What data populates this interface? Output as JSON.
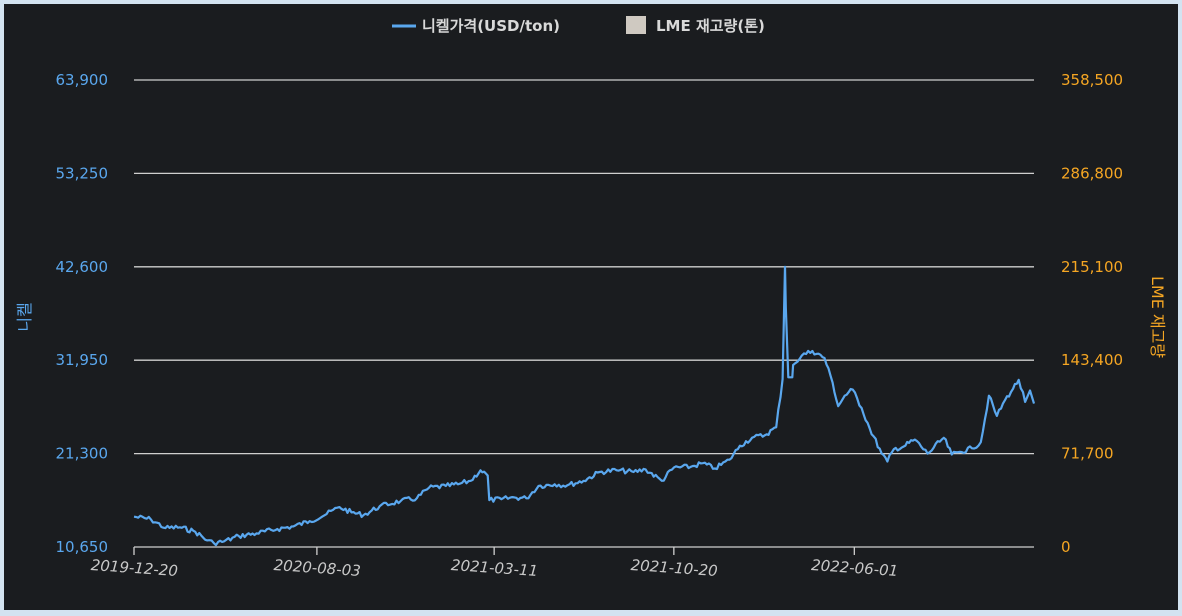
{
  "chart_data": {
    "type": "line",
    "title": "",
    "legend": [
      {
        "label": "니켈가격(USD/ton)",
        "color": "#5aa7ee",
        "kind": "line"
      },
      {
        "label": "LME 재고량(톤)",
        "color": "#cfc9c1",
        "kind": "box"
      }
    ],
    "legend_position": "top-center",
    "ylabel_left": "니켈",
    "ylabel_right": "LME 재고량",
    "y_left_ticks": [
      "63,900",
      "53,250",
      "42,600",
      "31,950",
      "21,300",
      "10,650"
    ],
    "y_left_range": [
      10650,
      63900
    ],
    "y_right_ticks": [
      "358,500",
      "286,800",
      "215,100",
      "143,400",
      "71,700",
      "0"
    ],
    "y_right_range": [
      0,
      358500
    ],
    "x_ticks": [
      "2019-12-20",
      "2020-08-03",
      "2021-03-11",
      "2021-10-20",
      "2022-06-01"
    ],
    "x_range": [
      "2019-12-20",
      "2023-01-10"
    ],
    "grid": true,
    "series": [
      {
        "name": "니켈가격(USD/ton)",
        "color": "#5aa7ee",
        "points": [
          [
            "2019-12-20",
            14100
          ],
          [
            "2020-01-10",
            13800
          ],
          [
            "2020-01-28",
            12800
          ],
          [
            "2020-02-15",
            12900
          ],
          [
            "2020-03-05",
            12400
          ],
          [
            "2020-03-20",
            11400
          ],
          [
            "2020-03-28",
            11100
          ],
          [
            "2020-04-10",
            11300
          ],
          [
            "2020-04-28",
            11900
          ],
          [
            "2020-05-20",
            12200
          ],
          [
            "2020-06-15",
            12700
          ],
          [
            "2020-07-05",
            13000
          ],
          [
            "2020-07-25",
            13600
          ],
          [
            "2020-08-15",
            14400
          ],
          [
            "2020-08-31",
            15200
          ],
          [
            "2020-09-15",
            14600
          ],
          [
            "2020-09-30",
            14300
          ],
          [
            "2020-10-20",
            15300
          ],
          [
            "2020-11-15",
            15900
          ],
          [
            "2020-12-05",
            16200
          ],
          [
            "2020-12-20",
            17400
          ],
          [
            "2021-01-10",
            17600
          ],
          [
            "2021-01-25",
            17800
          ],
          [
            "2021-02-10",
            18200
          ],
          [
            "2021-02-22",
            19400
          ],
          [
            "2021-03-03",
            18800
          ],
          [
            "2021-03-05",
            16000
          ],
          [
            "2021-03-20",
            16100
          ],
          [
            "2021-04-05",
            16300
          ],
          [
            "2021-04-20",
            16200
          ],
          [
            "2021-05-05",
            17600
          ],
          [
            "2021-05-25",
            17800
          ],
          [
            "2021-06-10",
            17700
          ],
          [
            "2021-06-30",
            18200
          ],
          [
            "2021-07-20",
            19200
          ],
          [
            "2021-08-10",
            19400
          ],
          [
            "2021-08-31",
            19200
          ],
          [
            "2021-09-15",
            19500
          ],
          [
            "2021-10-05",
            18200
          ],
          [
            "2021-10-20",
            19700
          ],
          [
            "2021-11-10",
            19800
          ],
          [
            "2021-11-25",
            20200
          ],
          [
            "2021-12-10",
            19600
          ],
          [
            "2021-12-28",
            20600
          ],
          [
            "2022-01-10",
            22200
          ],
          [
            "2022-01-25",
            23100
          ],
          [
            "2022-02-10",
            23400
          ],
          [
            "2022-02-24",
            24300
          ],
          [
            "2022-03-04",
            29800
          ],
          [
            "2022-03-07",
            42600
          ],
          [
            "2022-03-08",
            38000
          ],
          [
            "2022-03-11",
            30000
          ],
          [
            "2022-03-16",
            30000
          ],
          [
            "2022-03-17",
            31400
          ],
          [
            "2022-03-28",
            32500
          ],
          [
            "2022-04-10",
            33000
          ],
          [
            "2022-04-25",
            32200
          ],
          [
            "2022-05-05",
            29400
          ],
          [
            "2022-05-12",
            26700
          ],
          [
            "2022-05-20",
            27900
          ],
          [
            "2022-05-30",
            28600
          ],
          [
            "2022-06-10",
            26500
          ],
          [
            "2022-06-20",
            24200
          ],
          [
            "2022-07-05",
            21300
          ],
          [
            "2022-07-12",
            20400
          ],
          [
            "2022-07-20",
            21800
          ],
          [
            "2022-08-01",
            22100
          ],
          [
            "2022-08-15",
            22900
          ],
          [
            "2022-08-31",
            21300
          ],
          [
            "2022-09-20",
            23100
          ],
          [
            "2022-09-30",
            21200
          ],
          [
            "2022-10-10",
            21500
          ],
          [
            "2022-10-25",
            21900
          ],
          [
            "2022-11-05",
            22600
          ],
          [
            "2022-11-15",
            27900
          ],
          [
            "2022-11-25",
            25600
          ],
          [
            "2022-12-05",
            27400
          ],
          [
            "2022-12-15",
            28700
          ],
          [
            "2022-12-22",
            29700
          ],
          [
            "2022-12-30",
            27200
          ],
          [
            "2023-01-05",
            28500
          ],
          [
            "2023-01-10",
            27000
          ]
        ]
      }
    ]
  }
}
